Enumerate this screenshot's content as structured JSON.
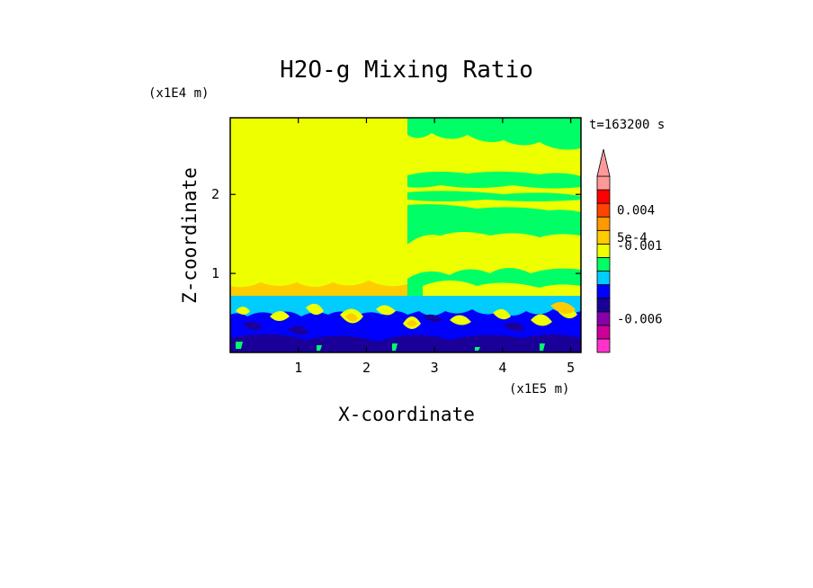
{
  "chart_data": {
    "type": "heatmap",
    "title": "H2O-g Mixing Ratio",
    "xlabel": "X-coordinate",
    "ylabel": "Z-coordinate",
    "x_unit": "(x1E5 m)",
    "y_unit": "(x1E4 m)",
    "time_label": "t=163200 s",
    "xlim": [
      0,
      5.15
    ],
    "ylim": [
      0,
      2.97
    ],
    "x_ticks": [
      1,
      2,
      3,
      4,
      5
    ],
    "y_ticks": [
      1,
      2
    ],
    "x_tick_labels": [
      "1",
      "2",
      "3",
      "4",
      "5"
    ],
    "y_tick_labels": [
      "1",
      "2"
    ],
    "colorbar": {
      "colors": [
        "#ff33cc",
        "#cc0099",
        "#8800aa",
        "#1a0099",
        "#0000ff",
        "#00ccff",
        "#00ff66",
        "#eeff00",
        "#ffcc00",
        "#ff9900",
        "#ff4400",
        "#ff0000",
        "#ff9999"
      ],
      "extend_top_color": "#ff9999",
      "labels": [
        {
          "text": "0.004",
          "level": 10.5
        },
        {
          "text": "5e-4",
          "level": 8.5
        },
        {
          "text": "-0.001",
          "level": 7.9
        },
        {
          "text": "-0.006",
          "level": 2.5
        }
      ]
    },
    "regions": [
      {
        "name": "upper-left-region",
        "x": [
          0,
          2.58
        ],
        "y": [
          0.73,
          2.97
        ],
        "color": "#eeff00"
      },
      {
        "name": "lower-band",
        "x": [
          0,
          5.15
        ],
        "y": [
          0,
          0.73
        ],
        "color": "#0000ff"
      },
      {
        "name": "right-upper-region",
        "x": [
          2.58,
          5.15
        ],
        "y": [
          0.73,
          2.97
        ],
        "color": "#eeff00"
      }
    ]
  }
}
